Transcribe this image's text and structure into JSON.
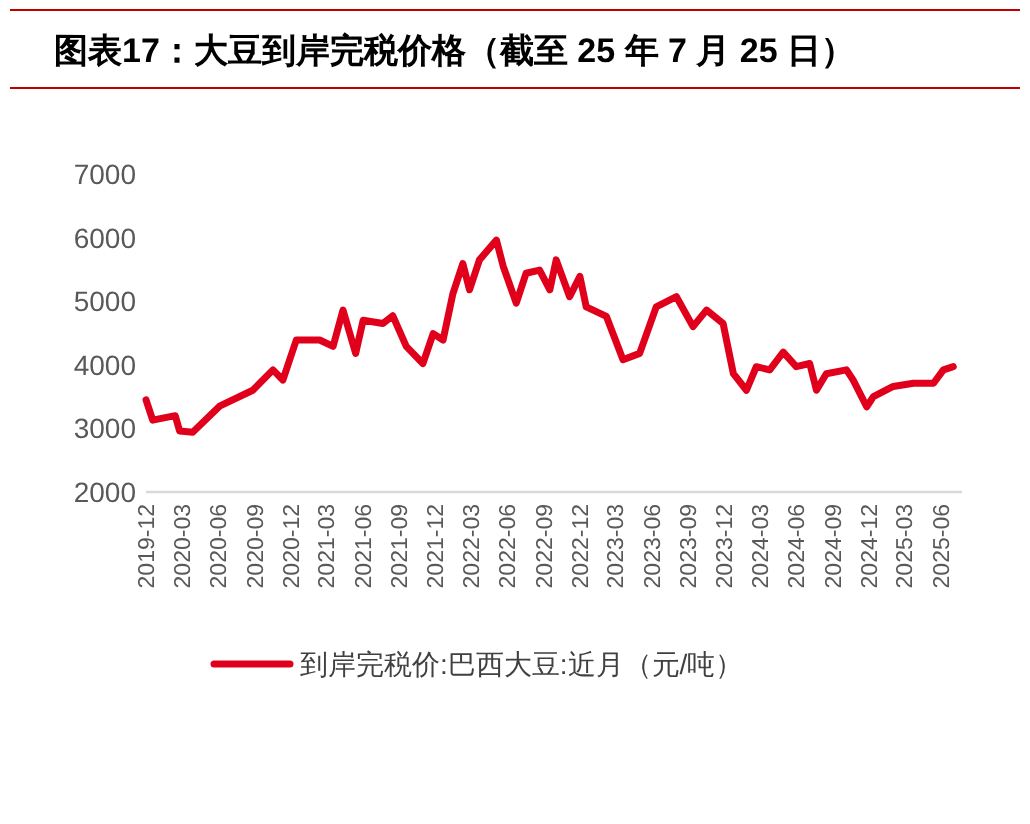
{
  "chart_data": {
    "type": "line",
    "title": "图表17：大豆到岸完税价格（截至 25 年 7 月 25 日）",
    "x": [
      "2019-12-01",
      "2019-12-18",
      "2020-02-13",
      "2020-02-24",
      "2020-03-28",
      "2020-06-04",
      "2020-08-27",
      "2020-10-17",
      "2020-11-11",
      "2020-12-15",
      "2021-02-12",
      "2021-03-18",
      "2021-04-12",
      "2021-05-14",
      "2021-06-02",
      "2021-07-22",
      "2021-08-16",
      "2021-09-19",
      "2021-10-31",
      "2021-11-26",
      "2021-12-21",
      "2022-01-15",
      "2022-02-09",
      "2022-02-26",
      "2022-03-23",
      "2022-05-05",
      "2022-05-22",
      "2022-06-24",
      "2022-07-19",
      "2022-08-22",
      "2022-09-17",
      "2022-10-03",
      "2022-11-06",
      "2022-12-02",
      "2022-12-18",
      "2023-02-07",
      "2023-03-21",
      "2023-05-02",
      "2023-06-13",
      "2023-08-03",
      "2023-09-14",
      "2023-10-18",
      "2023-11-29",
      "2023-12-25",
      "2024-01-27",
      "2024-02-21",
      "2024-03-26",
      "2024-04-29",
      "2024-06-01",
      "2024-07-05",
      "2024-07-22",
      "2024-08-16",
      "2024-10-06",
      "2024-10-23",
      "2024-11-26",
      "2024-12-13",
      "2025-02-01",
      "2025-03-24",
      "2025-05-14",
      "2025-06-08",
      "2025-07-03"
    ],
    "series": [
      {
        "name": "到岸完税价:巴西大豆:近月（元/吨）",
        "color": "#e0001b",
        "values": [
          3450,
          3130,
          3200,
          2960,
          2940,
          3350,
          3600,
          3920,
          3760,
          4390,
          4390,
          4290,
          4860,
          4180,
          4700,
          4650,
          4770,
          4290,
          4020,
          4490,
          4390,
          5120,
          5590,
          5180,
          5650,
          5960,
          5550,
          4970,
          5440,
          5490,
          5180,
          5650,
          5070,
          5390,
          4910,
          4760,
          4080,
          4180,
          4910,
          5070,
          4600,
          4860,
          4650,
          3860,
          3600,
          3970,
          3920,
          4200,
          3970,
          4020,
          3600,
          3860,
          3920,
          3760,
          3340,
          3500,
          3660,
          3710,
          3710,
          3920,
          3970
        ]
      }
    ],
    "xlim": [
      "2019-12-01",
      "2025-07-25"
    ],
    "xticks": [
      "2019-12",
      "2020-03",
      "2020-06",
      "2020-09",
      "2020-12",
      "2021-03",
      "2021-06",
      "2021-09",
      "2021-12",
      "2022-03",
      "2022-06",
      "2022-09",
      "2022-12",
      "2023-03",
      "2023-06",
      "2023-09",
      "2023-12",
      "2024-03",
      "2024-06",
      "2024-09",
      "2024-12",
      "2025-03",
      "2025-06"
    ],
    "ylim": [
      2000,
      7000
    ],
    "yticks": [
      2000,
      3000,
      4000,
      5000,
      6000,
      7000
    ],
    "legend": "bottom"
  }
}
